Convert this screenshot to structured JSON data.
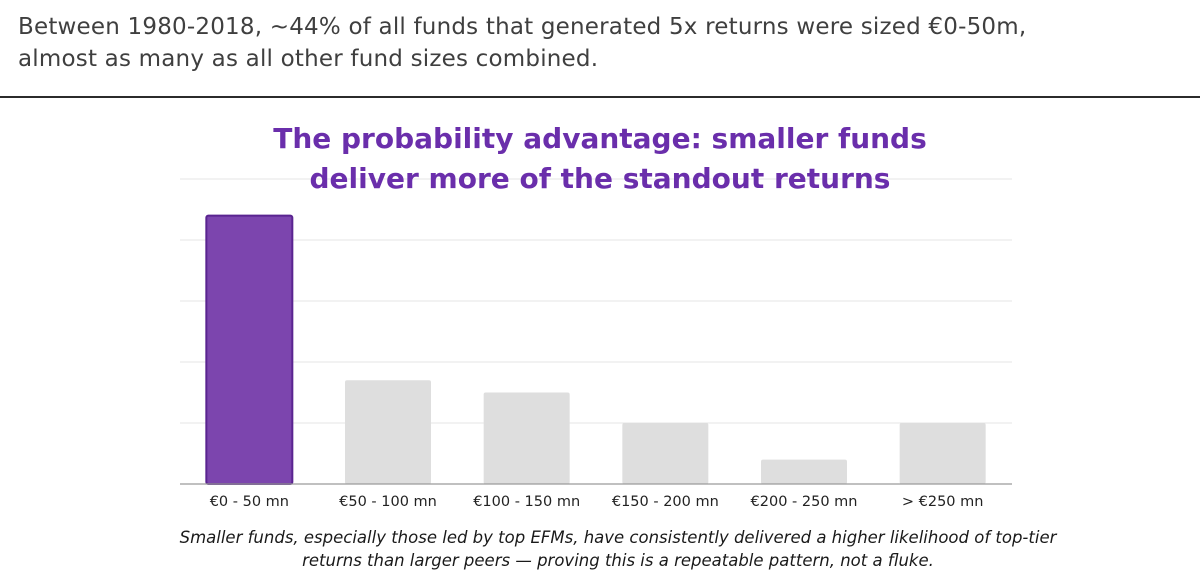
{
  "header": {
    "line1": "Between 1980-2018, ~44% of all funds that generated 5x returns were sized €0-50m,",
    "line2": "almost as many as all other fund sizes combined."
  },
  "chart_data": {
    "type": "bar",
    "title_line1": "The probability advantage: smaller funds",
    "title_line2": "deliver more of the standout returns",
    "categories": [
      "€0 - 50 mn",
      "€50 - 100 mn",
      "€100 - 150 mn",
      "€150 - 200 mn",
      "€200 - 250 mn",
      "> €250 mn"
    ],
    "values": [
      44,
      17,
      15,
      10,
      4,
      10
    ],
    "ylim": [
      0,
      50
    ],
    "yticks": [
      0,
      10,
      20,
      30,
      40,
      50
    ],
    "ytick_labels": [
      "",
      "",
      "",
      "",
      "",
      ""
    ],
    "grid": true,
    "xlabel": "",
    "ylabel": "",
    "highlight_index": 0,
    "colors": {
      "highlight": "#7c45ae",
      "highlight_border": "#5a2490",
      "other": "#dedede",
      "grid": "#e6e6e6",
      "axis": "#9a9a9a"
    }
  },
  "caption": {
    "line1": "Smaller funds, especially those led by top EFMs, have consistently delivered a higher likelihood of top-tier",
    "line2": "returns than larger peers — proving this is a repeatable pattern, not a fluke."
  }
}
